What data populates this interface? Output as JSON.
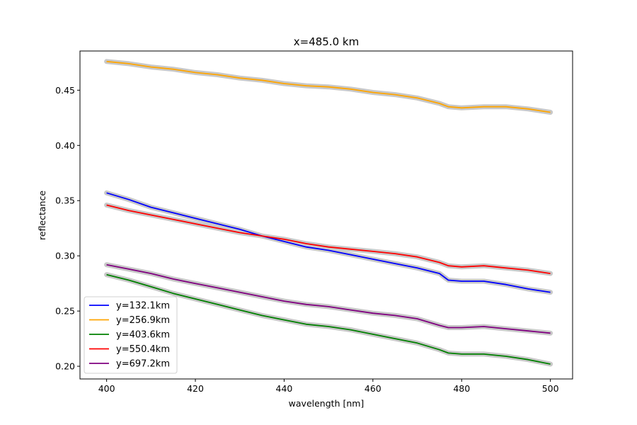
{
  "chart_data": {
    "type": "line",
    "title": "x=485.0 km",
    "xlabel": "wavelength [nm]",
    "ylabel": "reflectance",
    "xlim": [
      394,
      505
    ],
    "ylim": [
      0.1885,
      0.4855
    ],
    "xticks": [
      400,
      420,
      440,
      460,
      480,
      500
    ],
    "xtick_labels": [
      "400",
      "420",
      "440",
      "460",
      "480",
      "500"
    ],
    "yticks": [
      0.2,
      0.25,
      0.3,
      0.35,
      0.4,
      0.45
    ],
    "ytick_labels": [
      "0.20",
      "0.25",
      "0.30",
      "0.35",
      "0.40",
      "0.45"
    ],
    "grid": false,
    "legend_position": "lower-left",
    "uncertainty_band_color": "#c8c8c8",
    "x": [
      400,
      405,
      410,
      415,
      420,
      425,
      430,
      435,
      440,
      445,
      450,
      455,
      460,
      465,
      470,
      475,
      477,
      480,
      485,
      490,
      495,
      500
    ],
    "series": [
      {
        "name": "y=132.1km",
        "color": "#0000ff",
        "values": [
          0.357,
          0.351,
          0.344,
          0.339,
          0.334,
          0.329,
          0.324,
          0.318,
          0.313,
          0.308,
          0.305,
          0.301,
          0.297,
          0.293,
          0.289,
          0.284,
          0.278,
          0.277,
          0.277,
          0.274,
          0.27,
          0.267
        ]
      },
      {
        "name": "y=256.9km",
        "color": "#ffa500",
        "values": [
          0.476,
          0.474,
          0.471,
          0.469,
          0.466,
          0.464,
          0.461,
          0.459,
          0.456,
          0.454,
          0.453,
          0.451,
          0.448,
          0.446,
          0.443,
          0.438,
          0.435,
          0.434,
          0.435,
          0.435,
          0.433,
          0.43
        ]
      },
      {
        "name": "y=403.6km",
        "color": "#008000",
        "values": [
          0.283,
          0.278,
          0.272,
          0.266,
          0.261,
          0.256,
          0.251,
          0.246,
          0.242,
          0.238,
          0.236,
          0.233,
          0.229,
          0.225,
          0.221,
          0.215,
          0.212,
          0.211,
          0.211,
          0.209,
          0.206,
          0.202
        ]
      },
      {
        "name": "y=550.4km",
        "color": "#ff0000",
        "values": [
          0.346,
          0.341,
          0.337,
          0.333,
          0.329,
          0.325,
          0.321,
          0.318,
          0.315,
          0.311,
          0.308,
          0.306,
          0.304,
          0.302,
          0.299,
          0.294,
          0.291,
          0.29,
          0.291,
          0.289,
          0.287,
          0.284
        ]
      },
      {
        "name": "y=697.2km",
        "color": "#800080",
        "values": [
          0.292,
          0.288,
          0.284,
          0.279,
          0.275,
          0.271,
          0.267,
          0.263,
          0.259,
          0.256,
          0.254,
          0.251,
          0.248,
          0.246,
          0.243,
          0.237,
          0.235,
          0.235,
          0.236,
          0.234,
          0.232,
          0.23
        ]
      }
    ]
  }
}
